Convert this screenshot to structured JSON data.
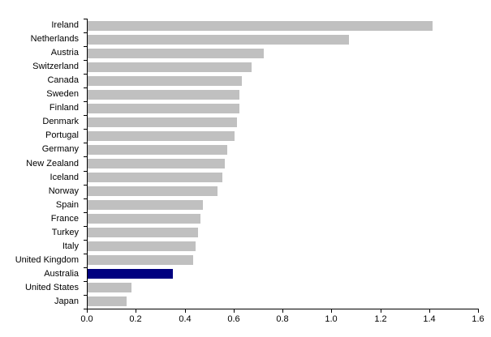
{
  "chart_data": {
    "type": "bar",
    "orientation": "horizontal",
    "title": "",
    "xlabel": "",
    "ylabel": "",
    "xlim": [
      0,
      1.6
    ],
    "grid": false,
    "legend": false,
    "categories": [
      "Ireland",
      "Netherlands",
      "Austria",
      "Switzerland",
      "Canada",
      "Sweden",
      "Finland",
      "Denmark",
      "Portugal",
      "Germany",
      "New Zealand",
      "Iceland",
      "Norway",
      "Spain",
      "France",
      "Turkey",
      "Italy",
      "United Kingdom",
      "Australia",
      "United States",
      "Japan"
    ],
    "values": [
      1.41,
      1.07,
      0.72,
      0.67,
      0.63,
      0.62,
      0.62,
      0.61,
      0.6,
      0.57,
      0.56,
      0.55,
      0.53,
      0.47,
      0.46,
      0.45,
      0.44,
      0.43,
      0.35,
      0.18,
      0.16
    ],
    "highlighted_category": "Australia",
    "bar_color": "#c0c0c0",
    "highlight_color": "#000080",
    "axis_color": "#000000",
    "x_ticks": [
      "0.0",
      "0.2",
      "0.4",
      "0.6",
      "0.8",
      "1.0",
      "1.2",
      "1.4",
      "1.6"
    ]
  }
}
